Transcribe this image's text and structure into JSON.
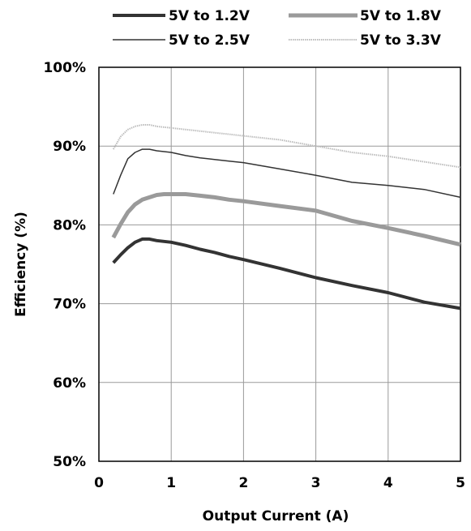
{
  "chart_data": {
    "type": "line",
    "title": "",
    "xlabel": "Output Current (A)",
    "ylabel": "Efficiency (%)",
    "xlim": [
      0,
      5
    ],
    "ylim": [
      50,
      100
    ],
    "x_ticks": [
      0,
      1,
      2,
      3,
      4,
      5
    ],
    "x_tick_labels": [
      "0",
      "1",
      "2",
      "3",
      "4",
      "5"
    ],
    "y_ticks": [
      50,
      60,
      70,
      80,
      90,
      100
    ],
    "y_tick_labels": [
      "50%",
      "60%",
      "70%",
      "80%",
      "90%",
      "100%"
    ],
    "grid": true,
    "legend_position": "top",
    "series": [
      {
        "name": "5V to 1.2V",
        "color": "#333333",
        "style": "thick solid dark",
        "x": [
          0.2,
          0.3,
          0.4,
          0.5,
          0.6,
          0.7,
          0.8,
          0.9,
          1.0,
          1.2,
          1.4,
          1.6,
          1.8,
          2.0,
          2.5,
          3.0,
          3.5,
          4.0,
          4.5,
          5.0
        ],
        "y": [
          75.2,
          76.2,
          77.1,
          77.8,
          78.2,
          78.2,
          78.0,
          77.9,
          77.8,
          77.4,
          76.9,
          76.5,
          76.0,
          75.6,
          74.5,
          73.3,
          72.3,
          71.4,
          70.2,
          69.4
        ]
      },
      {
        "name": "5V to 1.8V",
        "color": "#9a9a9a",
        "style": "thick solid gray",
        "x": [
          0.2,
          0.3,
          0.4,
          0.5,
          0.6,
          0.7,
          0.8,
          0.9,
          1.0,
          1.2,
          1.4,
          1.6,
          1.8,
          2.0,
          2.5,
          3.0,
          3.5,
          4.0,
          4.5,
          5.0
        ],
        "y": [
          78.4,
          80.1,
          81.6,
          82.6,
          83.2,
          83.5,
          83.8,
          83.9,
          83.9,
          83.9,
          83.7,
          83.5,
          83.2,
          83.0,
          82.4,
          81.8,
          80.5,
          79.6,
          78.6,
          77.5
        ]
      },
      {
        "name": "5V to 2.5V",
        "color": "#333333",
        "style": "thin solid dark",
        "x": [
          0.2,
          0.3,
          0.4,
          0.5,
          0.6,
          0.7,
          0.8,
          0.9,
          1.0,
          1.2,
          1.4,
          1.6,
          1.8,
          2.0,
          2.5,
          3.0,
          3.5,
          4.0,
          4.5,
          5.0
        ],
        "y": [
          83.9,
          86.3,
          88.4,
          89.2,
          89.6,
          89.6,
          89.4,
          89.3,
          89.2,
          88.8,
          88.5,
          88.3,
          88.1,
          87.9,
          87.1,
          86.3,
          85.4,
          85.0,
          84.5,
          83.5
        ]
      },
      {
        "name": "5V to 3.3V",
        "color": "#bdbdbd",
        "style": "thin dotted light gray",
        "x": [
          0.2,
          0.3,
          0.4,
          0.5,
          0.6,
          0.7,
          0.8,
          0.9,
          1.0,
          1.2,
          1.4,
          1.6,
          1.8,
          2.0,
          2.5,
          3.0,
          3.5,
          4.0,
          4.5,
          5.0
        ],
        "y": [
          89.6,
          91.2,
          92.1,
          92.5,
          92.7,
          92.7,
          92.5,
          92.4,
          92.3,
          92.1,
          91.9,
          91.7,
          91.5,
          91.3,
          90.8,
          90.0,
          89.2,
          88.7,
          88.0,
          87.3
        ]
      }
    ]
  }
}
